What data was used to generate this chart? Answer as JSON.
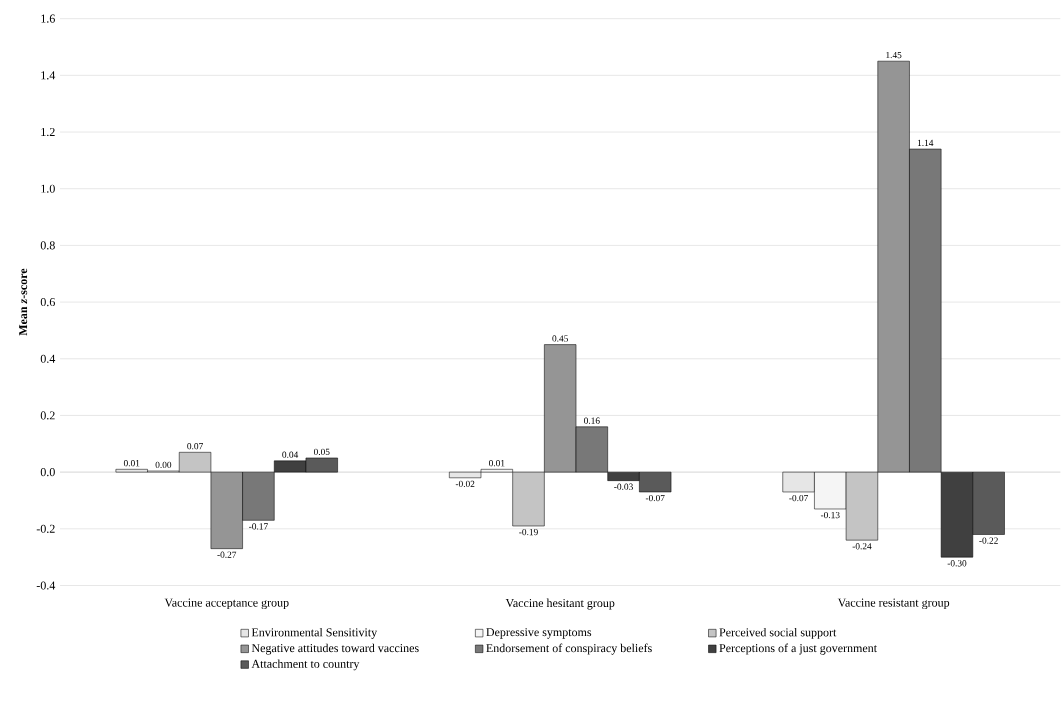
{
  "chart_data": {
    "type": "bar",
    "ylabel": "Mean *z*-score",
    "categories": [
      "Vaccine acceptance group",
      "Vaccine hesitant group",
      "Vaccine resistant group"
    ],
    "series": [
      {
        "name": "Environmental Sensitivity",
        "color": "#e6e6e6",
        "values": [
          0.01,
          -0.02,
          -0.07
        ],
        "value_labels": [
          "0.01",
          "-0.02",
          "-0.07"
        ]
      },
      {
        "name": "Depressive symptoms",
        "color": "#f5f5f5",
        "values": [
          0.004,
          0.01,
          -0.13
        ],
        "value_labels": [
          "0.00",
          "0.01",
          "-0.13"
        ]
      },
      {
        "name": "Perceived social support",
        "color": "#c4c4c4",
        "values": [
          0.07,
          -0.19,
          -0.24
        ],
        "value_labels": [
          "0.07",
          "-0.19",
          "-0.24"
        ]
      },
      {
        "name": "Negative attitudes toward vaccines",
        "color": "#959595",
        "values": [
          -0.27,
          0.45,
          1.45
        ],
        "value_labels": [
          "-0.27",
          "0.45",
          "1.45"
        ]
      },
      {
        "name": "Endorsement of conspiracy beliefs",
        "color": "#787878",
        "values": [
          -0.17,
          0.16,
          1.14
        ],
        "value_labels": [
          "-0.17",
          "0.16",
          "1.14"
        ]
      },
      {
        "name": "Perceptions of a just government",
        "color": "#404040",
        "values": [
          0.04,
          -0.03,
          -0.3
        ],
        "value_labels": [
          "0.04",
          "-0.03",
          "-0.30"
        ]
      },
      {
        "name": "Attachment to country",
        "color": "#5a5a5a",
        "values": [
          0.05,
          -0.07,
          -0.22
        ],
        "value_labels": [
          "0.05",
          "-0.07",
          "-0.22"
        ]
      }
    ],
    "ylim": [
      -0.4,
      1.6
    ],
    "yticks": [
      -0.4,
      -0.2,
      {
        "value": 0,
        "label": "0.0"
      },
      0.2,
      0.4,
      0.6,
      0.8,
      {
        "value": 1,
        "label": "1.0"
      },
      1.2,
      1.4,
      1.6
    ],
    "grid": "y",
    "legend": "bottom"
  }
}
